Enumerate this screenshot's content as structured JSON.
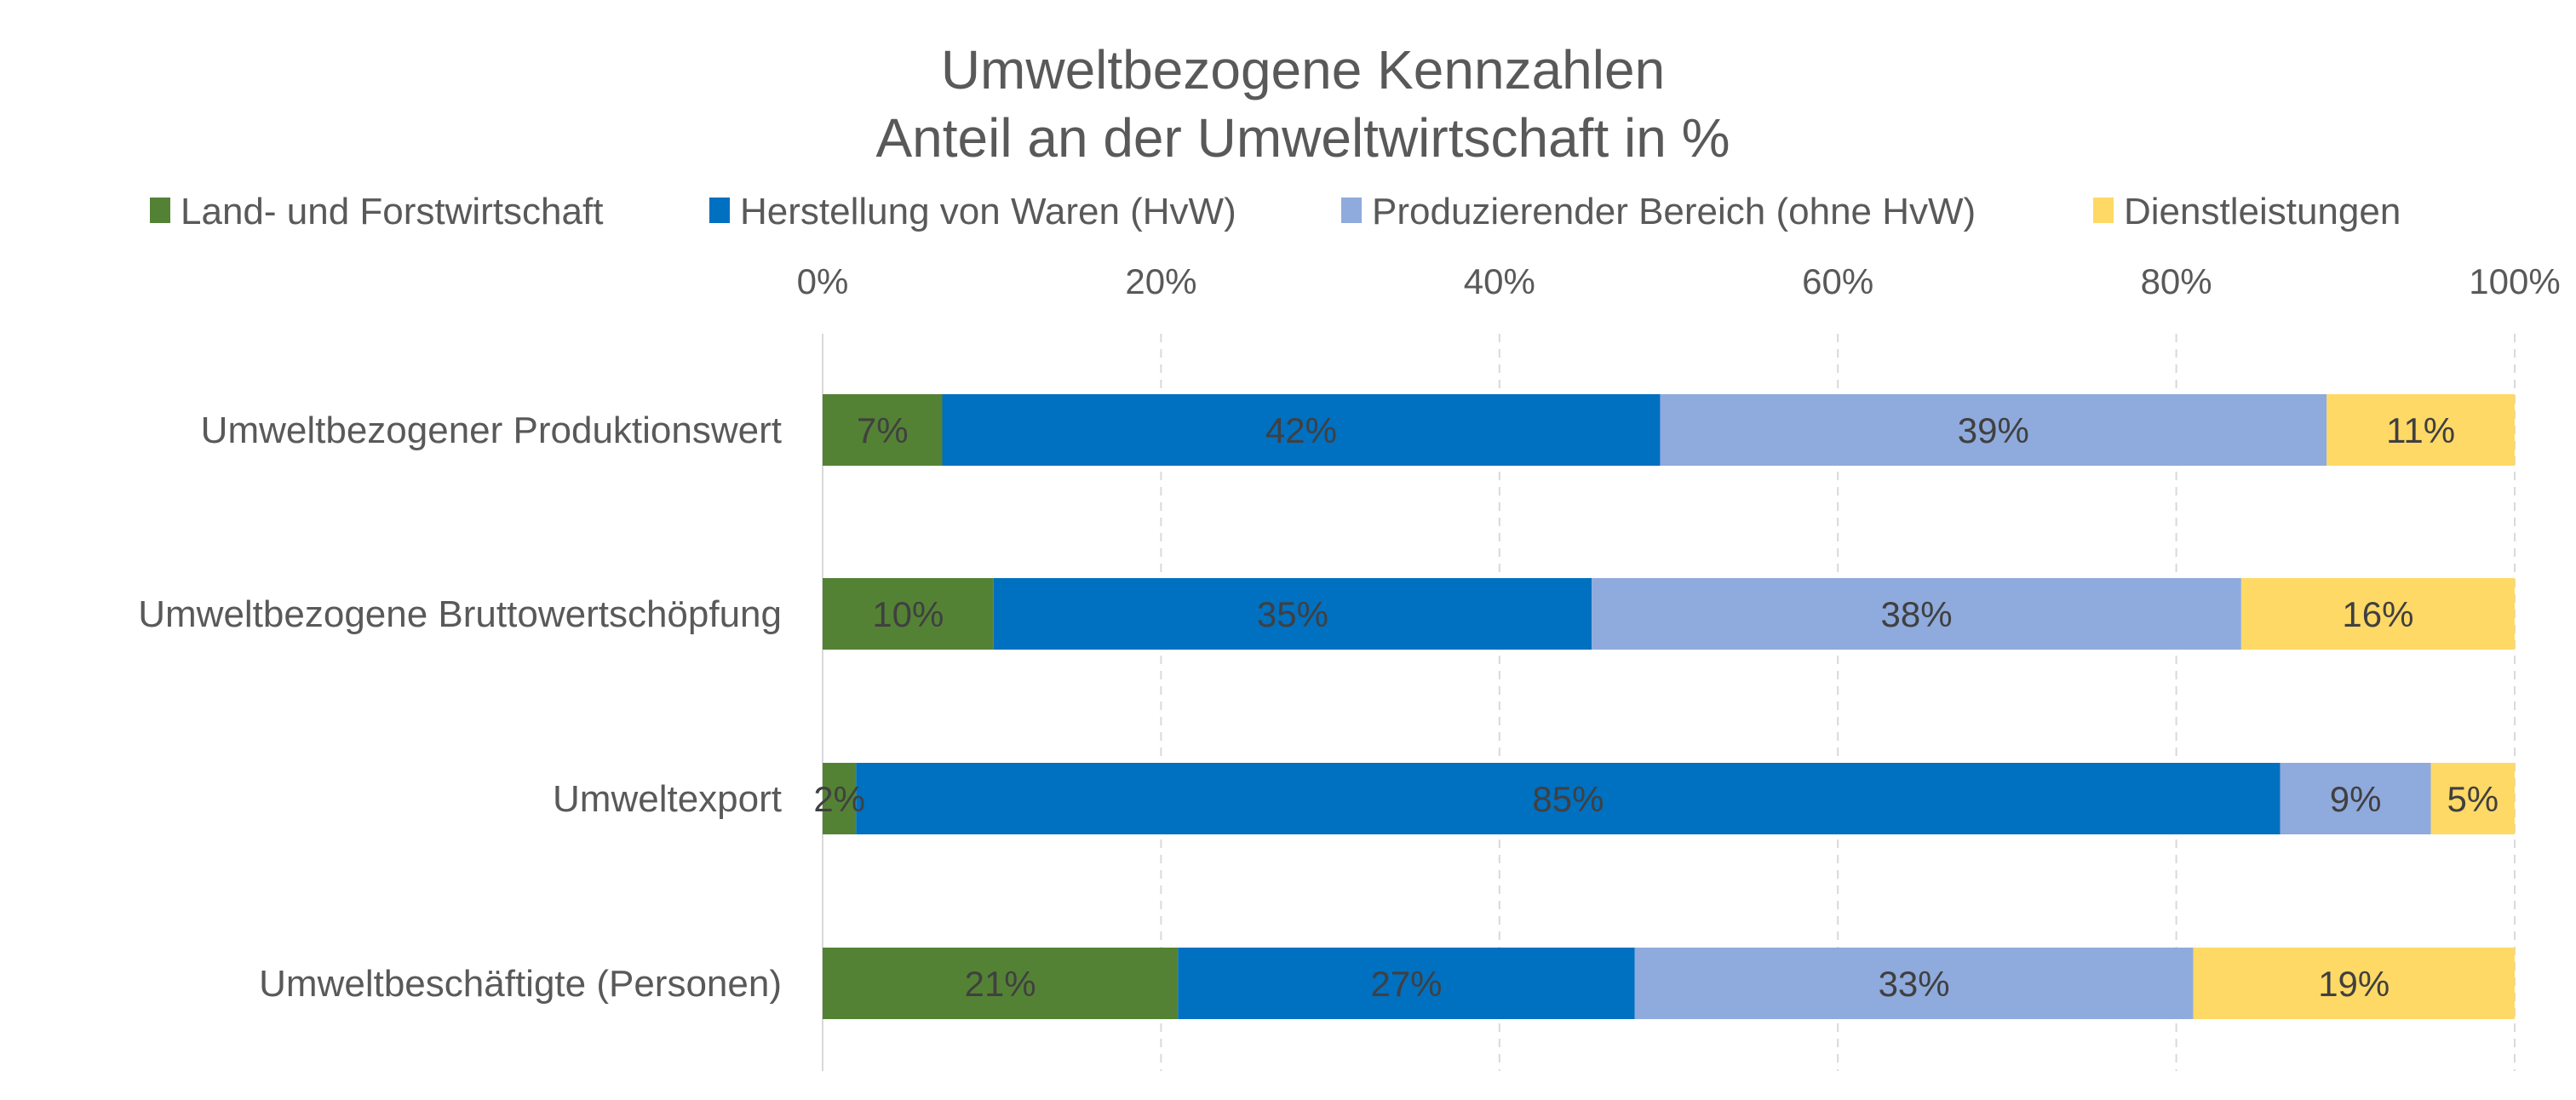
{
  "chart_data": {
    "type": "bar",
    "orientation": "horizontal",
    "stacked": "percent",
    "title": "Umweltbezogene Kennzahlen",
    "subtitle": "Anteil an der Umweltwirtschaft in %",
    "categories": [
      "Umweltbezogener Produktionswert",
      "Umweltbezogene Bruttowertschöpfung",
      "Umweltexport",
      "Umweltbeschäftigte (Personen)"
    ],
    "series": [
      {
        "name": "Land- und Forstwirtschaft",
        "color": "#548235",
        "values": [
          7,
          10,
          2,
          21
        ]
      },
      {
        "name": "Herstellung von Waren (HvW)",
        "color": "#0070C0",
        "values": [
          42,
          35,
          85,
          27
        ]
      },
      {
        "name": "Produzierender Bereich (ohne HvW)",
        "color": "#8FAADC",
        "values": [
          39,
          38,
          9,
          33
        ]
      },
      {
        "name": "Dienstleistungen",
        "color": "#FFD966",
        "values": [
          11,
          16,
          5,
          19
        ]
      }
    ],
    "xlim": [
      0,
      100
    ],
    "x_ticks": [
      "0%",
      "20%",
      "40%",
      "60%",
      "80%",
      "100%"
    ],
    "x_axis_position": "top",
    "grid": true,
    "legend_position": "top",
    "data_label_suffix": "%"
  }
}
